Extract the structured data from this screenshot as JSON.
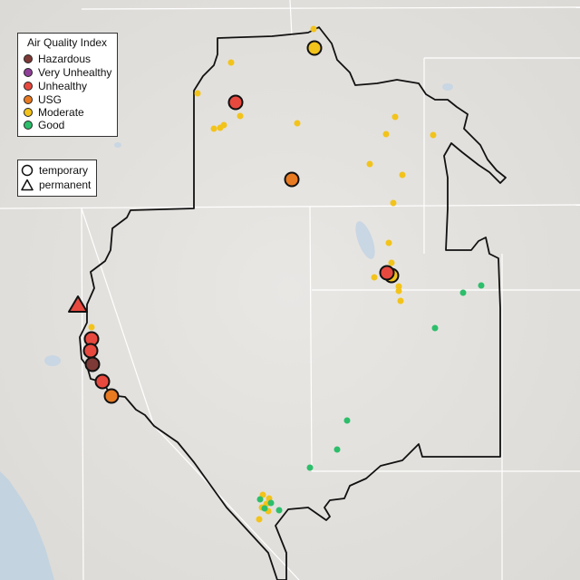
{
  "legend": {
    "aqi_title": "Air Quality Index",
    "categories": [
      {
        "label": "Hazardous",
        "color": "#7e3a36"
      },
      {
        "label": "Very Unhealthy",
        "color": "#8f3f97"
      },
      {
        "label": "Unhealthy",
        "color": "#e8493f"
      },
      {
        "label": "USG",
        "color": "#e87a22"
      },
      {
        "label": "Moderate",
        "color": "#f2c31b"
      },
      {
        "label": "Good",
        "color": "#2dbe6b"
      }
    ],
    "monitor_types": [
      {
        "label": "temporary",
        "icon": "circle-outline-icon"
      },
      {
        "label": "permanent",
        "icon": "triangle-outline-icon"
      }
    ]
  },
  "colors": {
    "terrain": "#e3e1de",
    "ocean": "#c3d3e0",
    "boundary": "#111111",
    "state_lines": "#ffffff"
  }
}
